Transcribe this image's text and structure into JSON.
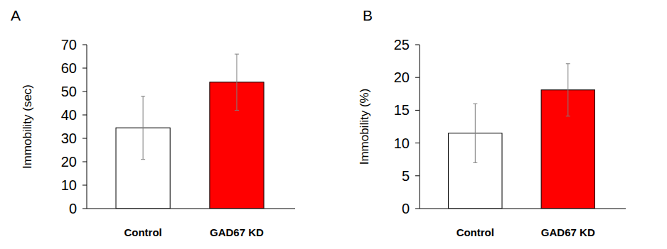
{
  "chart_data": [
    {
      "type": "bar",
      "title": "A",
      "y_label": "Immobility (sec)",
      "categories": [
        "Control",
        "GAD67 KD"
      ],
      "values": [
        34.5,
        54
      ],
      "errors": [
        13.5,
        12
      ],
      "colors": [
        "#ffffff",
        "#ff0000"
      ],
      "ylim": [
        0,
        70
      ],
      "yticks": [
        0,
        10,
        20,
        30,
        40,
        50,
        60,
        70
      ]
    },
    {
      "type": "bar",
      "title": "B",
      "y_label": "Immobility (%)",
      "categories": [
        "Control",
        "GAD67 KD"
      ],
      "values": [
        11.5,
        18.1
      ],
      "errors": [
        4.5,
        4
      ],
      "colors": [
        "#ffffff",
        "#ff0000"
      ],
      "ylim": [
        0,
        25
      ],
      "yticks": [
        0,
        5,
        10,
        15,
        20,
        25
      ]
    }
  ]
}
